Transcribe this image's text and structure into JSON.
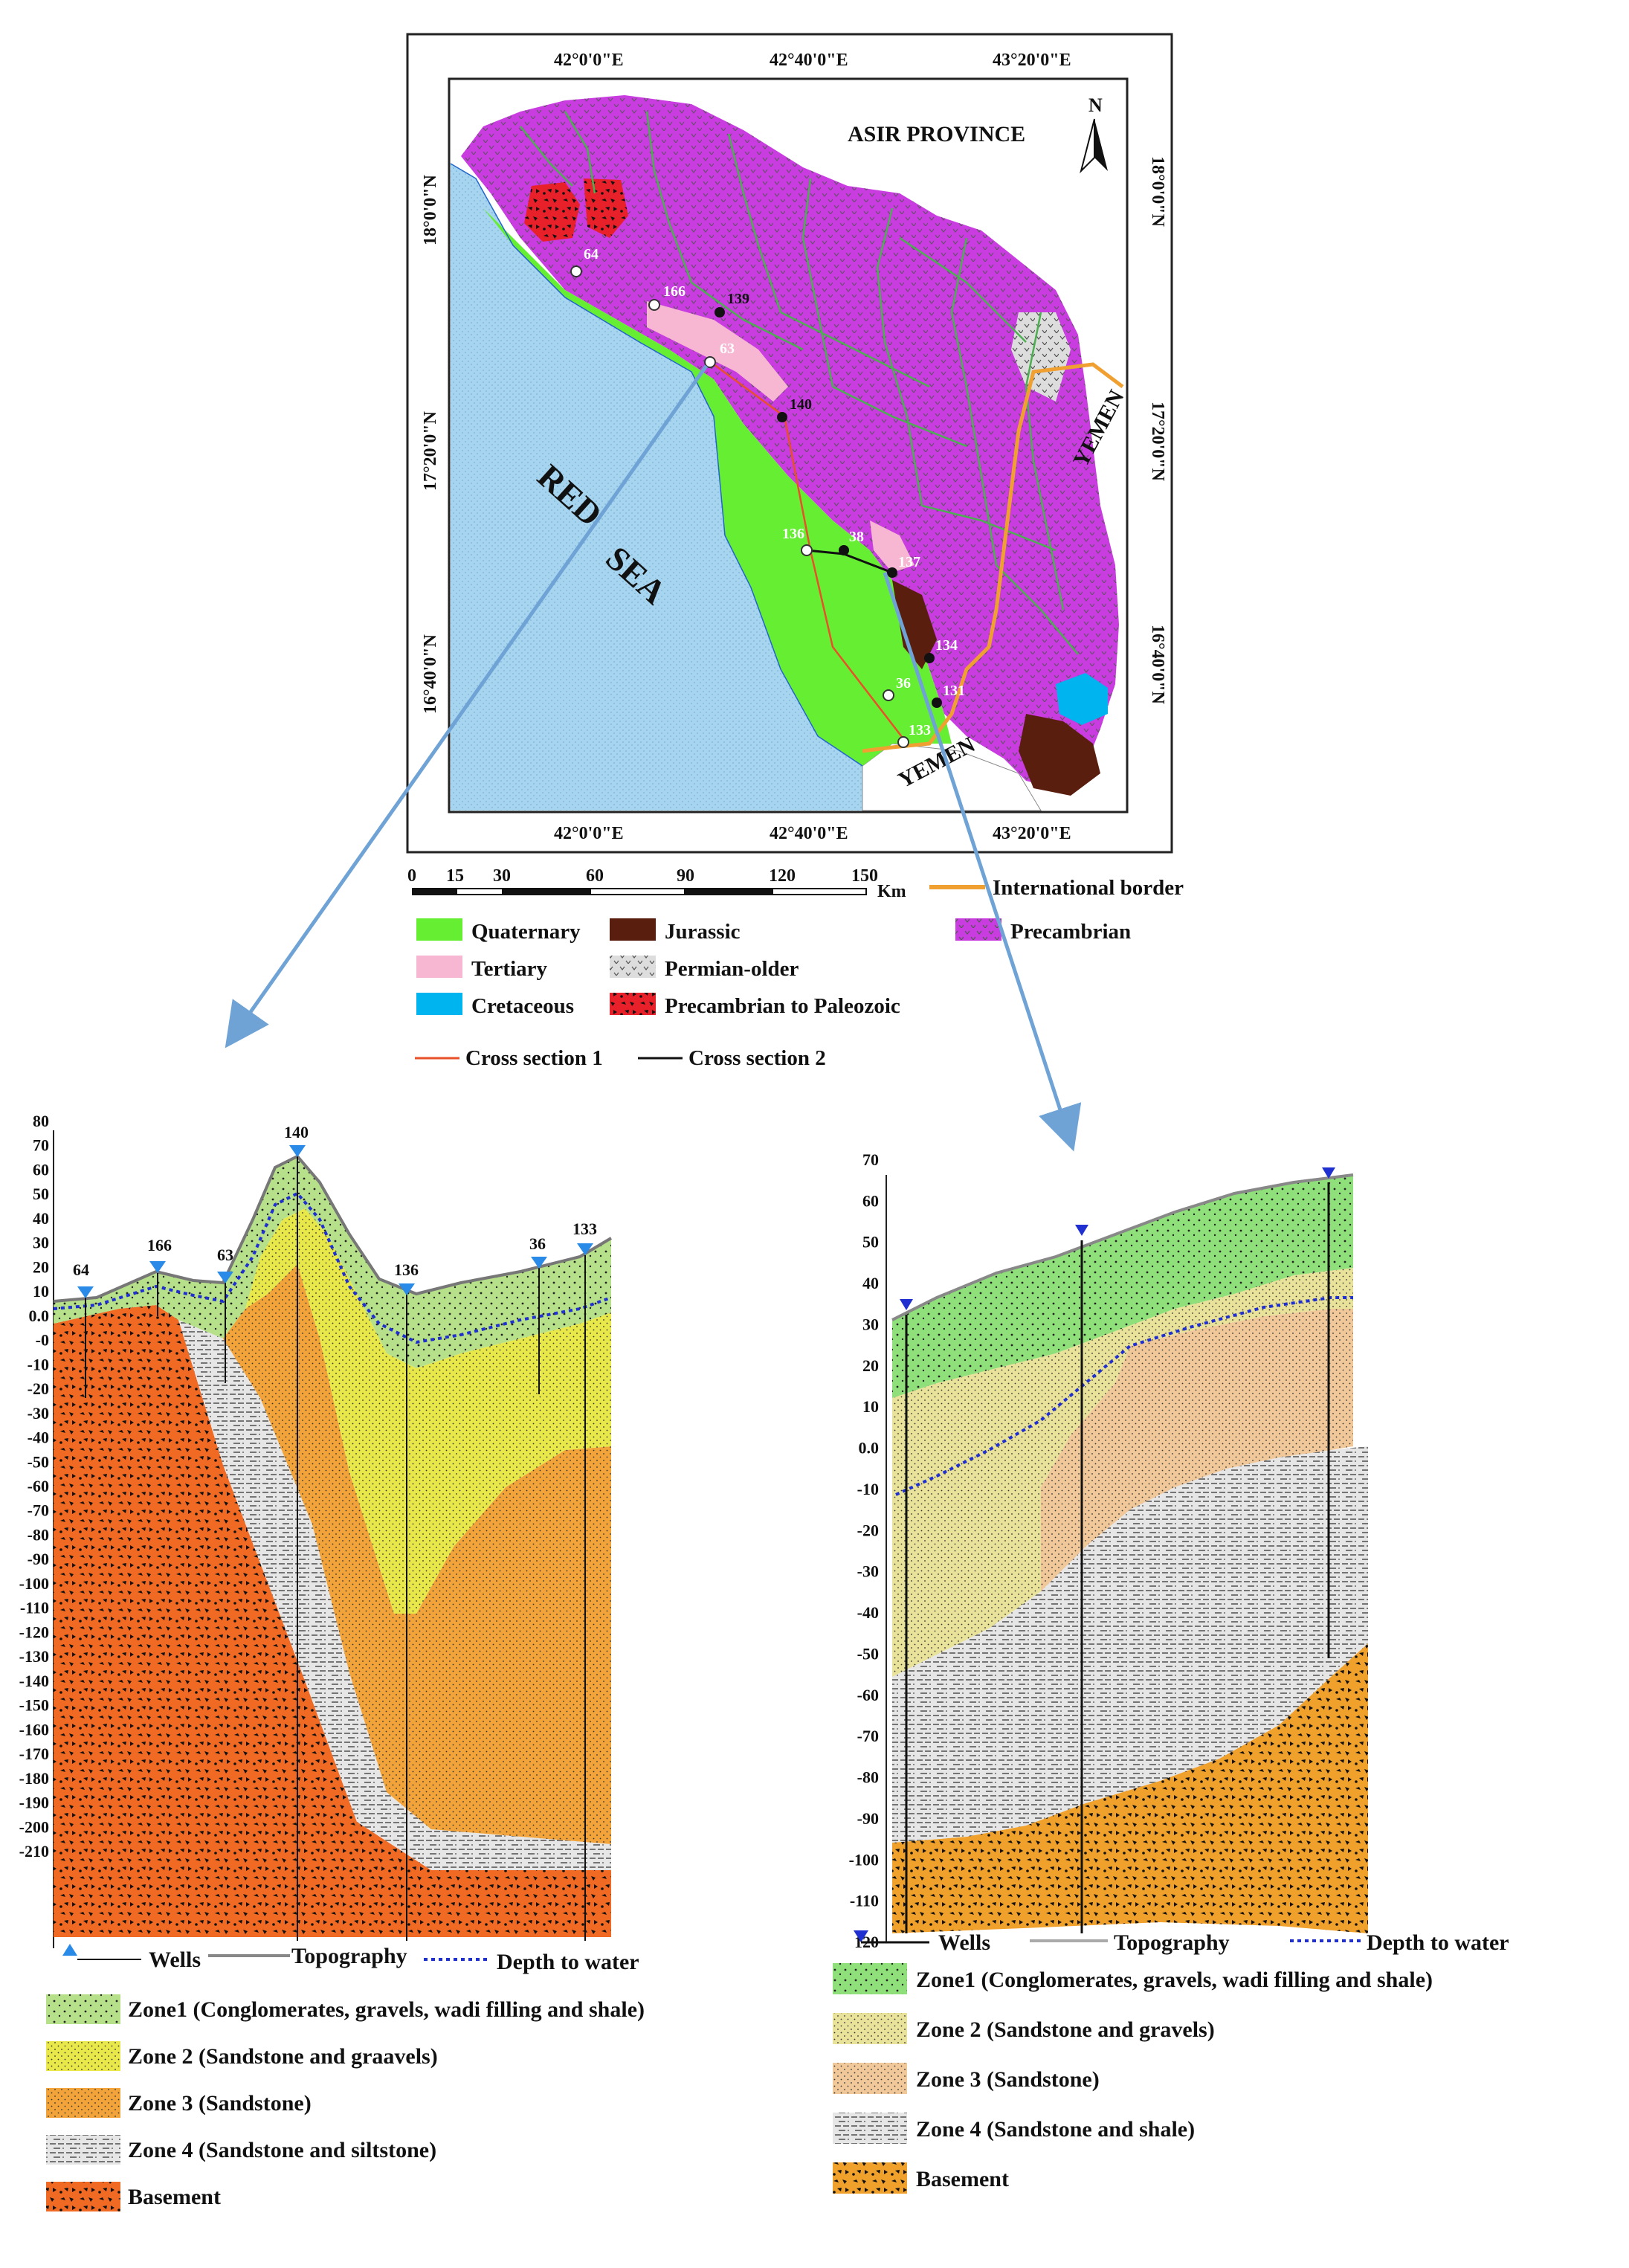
{
  "map": {
    "province_label": "ASIR PROVINCE",
    "sea_label_1": "RED",
    "sea_label_2": "SEA",
    "yemen_label_east": "YEMEN",
    "yemen_label_south": "YEMEN",
    "north_label": "N",
    "lon_top": [
      "42°0'0\"E",
      "42°40'0\"E",
      "43°20'0\"E"
    ],
    "lon_bottom": [
      "42°0'0\"E",
      "42°40'0\"E",
      "43°20'0\"E"
    ],
    "lat_left": [
      "18°0'0\"N",
      "17°20'0\"N",
      "16°40'0\"N"
    ],
    "lat_right": [
      "18°0'0\"N",
      "17°20'0\"N",
      "16°40'0\"N"
    ],
    "wells": [
      "64",
      "166",
      "139",
      "63",
      "140",
      "136",
      "38",
      "137",
      "134",
      "36",
      "131",
      "133"
    ],
    "scale_ticks": [
      "0",
      "15",
      "30",
      "60",
      "90",
      "120",
      "150"
    ],
    "scale_unit": "Km"
  },
  "legend_map": {
    "quaternary": "Quaternary",
    "jurassic": "Jurassic",
    "precambrian": "Precambrian",
    "tertiary": "Tertiary",
    "permian": "Permian-older",
    "cretaceous": "Cretaceous",
    "precamb_paleo": "Precambrian to Paleozoic",
    "border": "International border",
    "cs1": "Cross section 1",
    "cs2": "Cross section 2"
  },
  "colors": {
    "quaternary": "#66ee33",
    "tertiary": "#f7b6d2",
    "cretaceous": "#00b4f0",
    "jurassic": "#5a1e0e",
    "permian": "#dddddd",
    "precamb_paleo": "#e8202a",
    "precambrian": "#c83ce0",
    "sea": "#a7d4ee",
    "zone1": "#b6e08a",
    "zone2": "#e8e84a",
    "zone3": "#f2a43a",
    "zone4": "#e6e6e6",
    "basement1": "#f06a24",
    "zone1b": "#8fe07a",
    "zone2b": "#e9e29a",
    "zone3b": "#f1c89a",
    "basement2": "#f0a12c",
    "water": "#1f2fd0",
    "border": "#f0a030",
    "cs1": "#e8502a",
    "arrow": "#6fa3d6"
  },
  "section1": {
    "yticks": [
      "80",
      "70",
      "60",
      "50",
      "40",
      "30",
      "20",
      "10",
      "0.0",
      "-0",
      "-10",
      "-20",
      "-30",
      "-40",
      "-50",
      "-60",
      "-70",
      "-80",
      "-90",
      "-100",
      "-110",
      "-120",
      "-130",
      "-140",
      "-150",
      "-160",
      "-170",
      "-180",
      "-190",
      "-200",
      "-210"
    ],
    "wells": [
      "64",
      "166",
      "63",
      "140",
      "136",
      "36",
      "133"
    ],
    "legend_wells": "Wells",
    "legend_topo": "Topography",
    "legend_water": "Depth to water",
    "zone1": "Zone1 (Conglomerates, gravels, wadi filling and shale)",
    "zone2": "Zone 2 (Sandstone and graavels)",
    "zone3": "Zone 3 (Sandstone)",
    "zone4": "Zone 4 (Sandstone and siltstone)",
    "basement": "Basement"
  },
  "section2": {
    "yticks": [
      "70",
      "60",
      "50",
      "40",
      "30",
      "20",
      "10",
      "0.0",
      "-10",
      "-20",
      "-30",
      "-40",
      "-50",
      "-60",
      "-70",
      "-80",
      "-90",
      "-100",
      "-110",
      "120"
    ],
    "legend_wells": "Wells",
    "legend_topo": "Topography",
    "legend_water": "Depth to water",
    "zone1": "Zone1 (Conglomerates, gravels, wadi filling and shale)",
    "zone2": "Zone 2 (Sandstone and gravels)",
    "zone3": "Zone 3 (Sandstone)",
    "zone4": "Zone 4 (Sandstone and shale)",
    "basement": "Basement"
  }
}
